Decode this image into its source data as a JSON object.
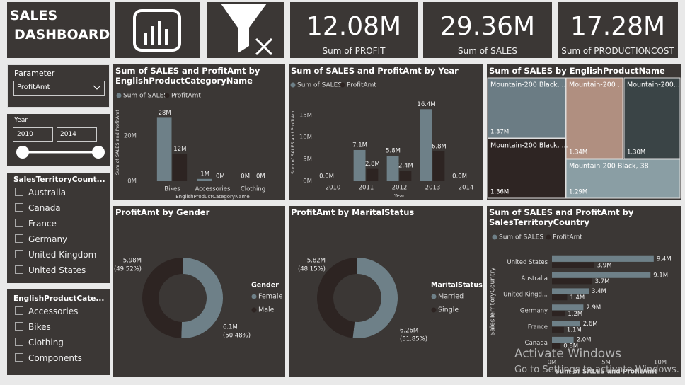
{
  "header": {
    "title_lines": [
      "SALES",
      "DASHBOARD"
    ]
  },
  "cards": [
    {
      "value": "12.08M",
      "label": "Sum of PROFIT"
    },
    {
      "value": "29.36M",
      "label": "Sum of SALES"
    },
    {
      "value": "17.28M",
      "label": "Sum of PRODUCTIONCOST"
    }
  ],
  "slicers": {
    "parameter": {
      "title": "Parameter",
      "selected": "ProfitAmt"
    },
    "year": {
      "title": "Year",
      "from": "2010",
      "to": "2014"
    },
    "country": {
      "title": "SalesTerritoryCount...",
      "items": [
        "Australia",
        "Canada",
        "France",
        "Germany",
        "United Kingdom",
        "United States"
      ]
    },
    "category": {
      "title": "EnglishProductCate...",
      "items": [
        "Accessories",
        "Bikes",
        "Clothing",
        "Components"
      ]
    }
  },
  "chart_data": [
    {
      "type": "bar",
      "title": "Sum of SALES and ProfitAmt by EnglishProductCategoryName",
      "categories": [
        "Bikes",
        "Accessories",
        "Clothing"
      ],
      "series": [
        {
          "name": "Sum of SALES",
          "color": "#6e8088",
          "values": [
            28,
            1,
            0
          ],
          "value_labels": [
            "28M",
            "1M",
            "0M"
          ]
        },
        {
          "name": "ProfitAmt",
          "color": "#2d2422",
          "values": [
            12,
            0,
            0
          ],
          "value_labels": [
            "12M",
            "0M",
            "0M"
          ]
        }
      ],
      "ylim": [
        0,
        30
      ],
      "yticks": [
        {
          "value": 0,
          "label": "0M"
        },
        {
          "value": 20,
          "label": "20M"
        }
      ],
      "y_label": "Sum of SALES and ProfitAmt",
      "x_label": "EnglishProductCategoryName"
    },
    {
      "type": "bar",
      "title": "Sum of SALES and ProfitAmt by Year",
      "categories": [
        "2010",
        "2011",
        "2012",
        "2013",
        "2014"
      ],
      "series": [
        {
          "name": "Sum of SALES",
          "color": "#6e8088",
          "values": [
            0,
            7.1,
            5.8,
            16.4,
            0
          ],
          "value_labels": [
            "0.0M",
            "7.1M",
            "5.8M",
            "16.4M",
            "0.0M"
          ]
        },
        {
          "name": "ProfitAmt",
          "color": "#2d2422",
          "values": [
            null,
            2.8,
            2.4,
            6.8,
            null
          ],
          "value_labels": [
            null,
            "2.8M",
            "2.4M",
            "6.8M",
            null
          ]
        }
      ],
      "ylim": [
        0,
        17
      ],
      "yticks": [
        {
          "value": 0,
          "label": "0M"
        },
        {
          "value": 5,
          "label": "5M"
        },
        {
          "value": 10,
          "label": "10M"
        },
        {
          "value": 15,
          "label": "15M"
        }
      ],
      "y_label": "Sum of SALES and ProfitAmt",
      "x_label": "Year"
    },
    {
      "type": "treemap",
      "title": "Sum of SALES by EnglishProductName",
      "categories": [
        "Mountain-200 Black, ...",
        "Mountain-200 ...",
        "Mountain-200...",
        "Mountain-200 Black, ...",
        "Mountain-200 Black, 38"
      ],
      "values": [
        1.37,
        1.34,
        1.3,
        1.36,
        1.29
      ],
      "value_labels": [
        "1.37M",
        "1.34M",
        "1.30M",
        "1.36M",
        "1.29M"
      ],
      "colors": [
        "#6b7c84",
        "#b08f80",
        "#3a4446",
        "#2e2523",
        "#8a9ea4"
      ]
    },
    {
      "type": "donut",
      "title": "ProfitAmt by Gender",
      "legend_title": "Gender",
      "categories": [
        "Female",
        "Male"
      ],
      "values": [
        6.1,
        5.98
      ],
      "value_labels": [
        "6.1M",
        "5.98M"
      ],
      "percents": [
        50.48,
        49.52
      ],
      "percent_labels": [
        "(50.48%)",
        "(49.52%)"
      ],
      "colors": [
        "#6e8088",
        "#2d2422"
      ]
    },
    {
      "type": "donut",
      "title": "ProfitAmt by MaritalStatus",
      "legend_title": "MaritalStatus",
      "categories": [
        "Married",
        "Single"
      ],
      "values": [
        6.26,
        5.82
      ],
      "value_labels": [
        "6.26M",
        "5.82M"
      ],
      "percents": [
        51.85,
        48.15
      ],
      "percent_labels": [
        "(51.85%)",
        "(48.15%)"
      ],
      "colors": [
        "#6e8088",
        "#2d2422"
      ]
    },
    {
      "type": "bar",
      "horizontal": true,
      "title": "Sum of SALES and ProfitAmt by SalesTerritoryCountry",
      "categories": [
        "United States",
        "Australia",
        "United Kingd...",
        "Germany",
        "France",
        "Canada"
      ],
      "series": [
        {
          "name": "Sum of SALES",
          "color": "#6e8088",
          "values": [
            9.4,
            9.1,
            3.4,
            2.9,
            2.6,
            2.0
          ],
          "value_labels": [
            "9.4M",
            "9.1M",
            "3.4M",
            "2.9M",
            "2.6M",
            "2.0M"
          ]
        },
        {
          "name": "ProfitAmt",
          "color": "#2d2422",
          "values": [
            3.9,
            3.7,
            1.4,
            1.2,
            1.1,
            0.8
          ],
          "value_labels": [
            "3.9M",
            "3.7M",
            "1.4M",
            "1.2M",
            "1.1M",
            "0.8M"
          ]
        }
      ],
      "xlim": [
        0,
        10
      ],
      "xticks": [
        {
          "value": 0,
          "label": "0M"
        },
        {
          "value": 5,
          "label": "5M"
        },
        {
          "value": 10,
          "label": "10M"
        }
      ],
      "y_label": "SalesTerritoryCountry",
      "x_label": "Sum of SALES and ProfitAmt"
    }
  ],
  "watermark": {
    "line1": "Activate Windows",
    "line2": "Go to Settings to activate Windows."
  }
}
